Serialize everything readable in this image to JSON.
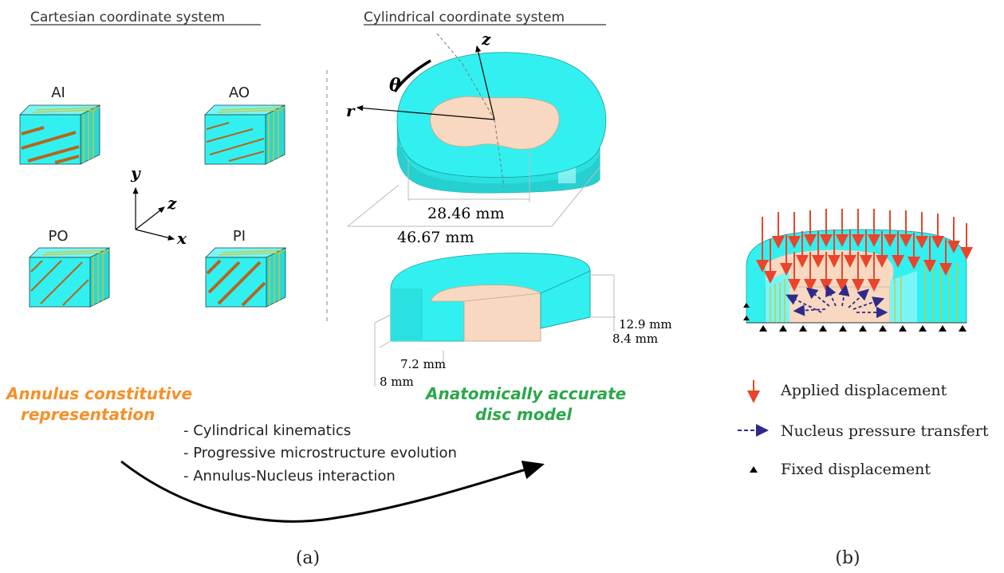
{
  "headings": {
    "cartesian": "Cartesian coordinate system",
    "cylindrical": "Cylindrical coordinate system"
  },
  "blocks": {
    "ai": "AI",
    "ao": "AO",
    "po": "PO",
    "pi": "PI"
  },
  "axes": {
    "x": "x",
    "y": "y",
    "z": "z",
    "r": "r",
    "theta": "θ",
    "zc": "z"
  },
  "dimensions": {
    "d1": "28.46 mm",
    "d2": "46.67 mm",
    "h1": "12.9 mm",
    "h2": "8.4 mm",
    "h3": "7.2 mm",
    "h4": "8 mm"
  },
  "labels": {
    "annulus_line1": "Annulus constitutive",
    "annulus_line2": "representation",
    "disc_line1": "Anatomically accurate",
    "disc_line2": "disc model",
    "bullet1": "- Cylindrical kinematics",
    "bullet2": "- Progressive microstructure evolution",
    "bullet3": "- Annulus-Nucleus interaction"
  },
  "legend": {
    "applied": "Applied displacement",
    "pressure": "Nucleus pressure transfert",
    "fixed": "Fixed displacement"
  },
  "captions": {
    "a": "(a)",
    "b": "(b)"
  },
  "colors": {
    "annulus": "#33f0f0",
    "nucleus": "#f8d8c0",
    "fiber": "#b5651d",
    "applied_arrow": "#e8452c",
    "pressure_arrow": "#2e2a8c",
    "orange_text": "#f5902a",
    "green_text": "#2aa84a"
  }
}
